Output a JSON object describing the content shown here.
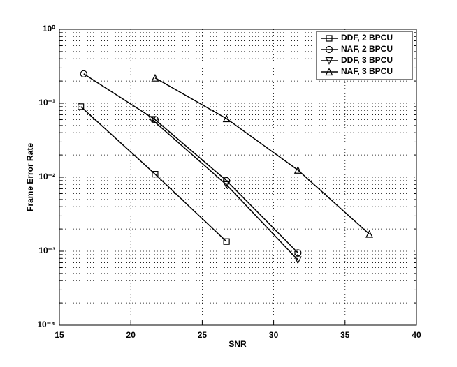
{
  "chart_data": {
    "type": "line",
    "x_label": "SNR",
    "y_label": "Frame Error Rate",
    "xlim": [
      15,
      40
    ],
    "xticks": [
      15,
      20,
      25,
      30,
      35,
      40
    ],
    "ylim": [
      0.0001,
      1
    ],
    "log_y": true,
    "grid": true,
    "minor_grid": true,
    "legend": "upper right",
    "yticks": [
      {
        "value": 0.0001,
        "label": "10⁻⁴"
      },
      {
        "value": 0.001,
        "label": "10⁻³"
      },
      {
        "value": 0.01,
        "label": "10⁻²"
      },
      {
        "value": 0.1,
        "label": "10⁻¹"
      },
      {
        "value": 1,
        "label": "10⁰"
      }
    ],
    "series": [
      {
        "name": "DDF, 2 BPCU",
        "color": "#000000",
        "marker": "square",
        "x": [
          16.5,
          21.7,
          26.7
        ],
        "values": [
          0.09,
          0.011,
          0.00135
        ]
      },
      {
        "name": "NAF, 2 BPCU",
        "color": "#000000",
        "marker": "circle",
        "x": [
          16.7,
          21.7,
          26.7,
          31.7
        ],
        "values": [
          0.25,
          0.06,
          0.009,
          0.00095
        ]
      },
      {
        "name": "DDF, 3 BPCU",
        "color": "#000000",
        "marker": "triangle-down",
        "x": [
          21.5,
          26.7,
          31.7
        ],
        "values": [
          0.06,
          0.0079,
          0.00076
        ]
      },
      {
        "name": "NAF, 3 BPCU",
        "color": "#000000",
        "marker": "triangle-up",
        "x": [
          21.7,
          26.7,
          31.7,
          36.7
        ],
        "values": [
          0.22,
          0.062,
          0.0125,
          0.0017
        ]
      }
    ]
  }
}
